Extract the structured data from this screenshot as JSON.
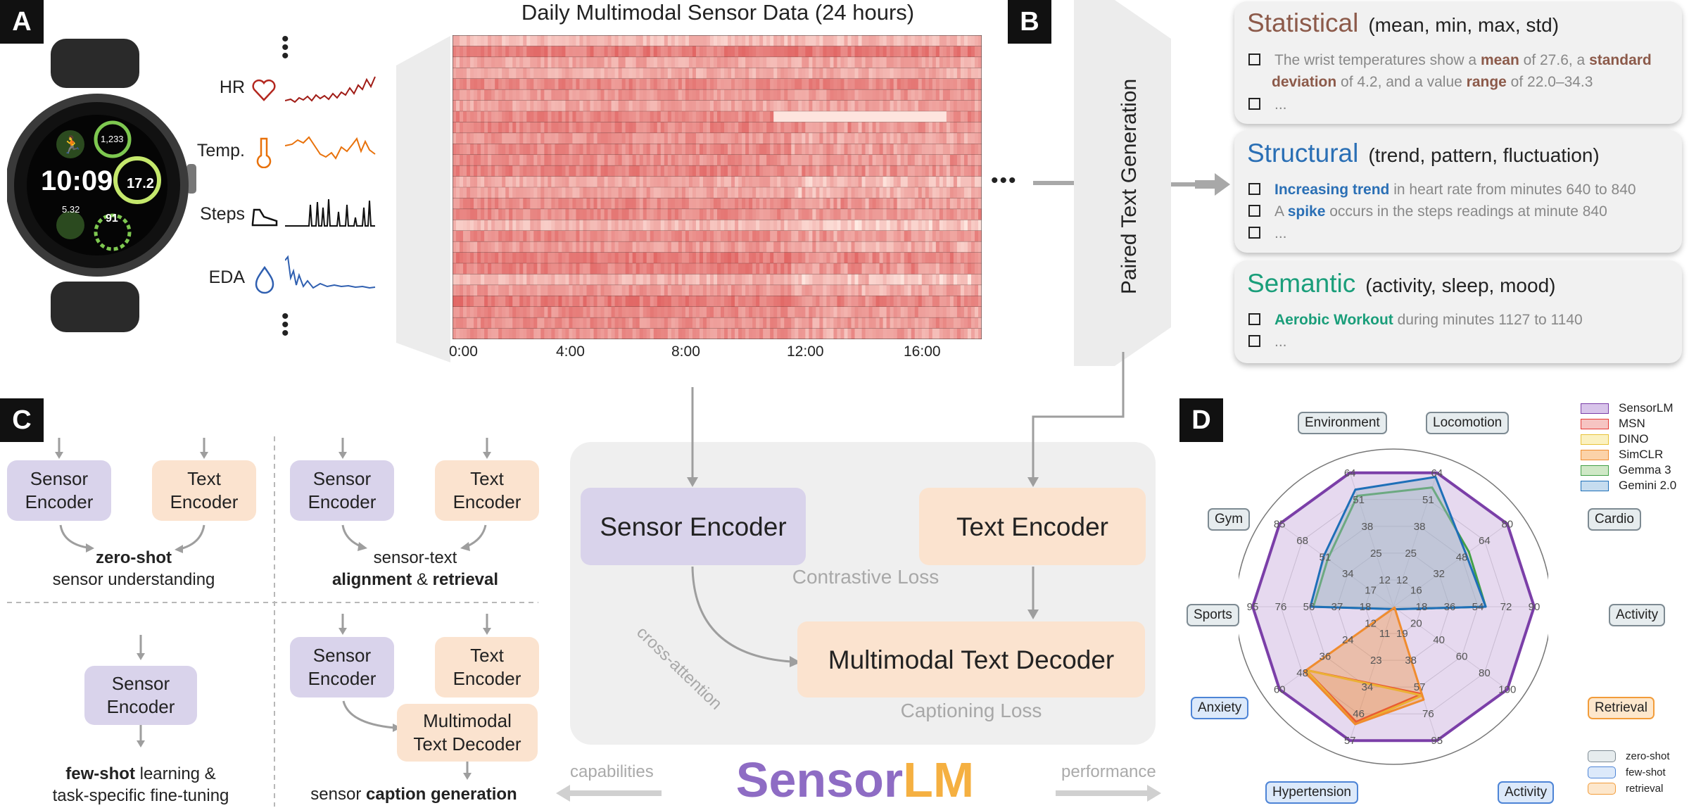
{
  "panels": {
    "a": "A",
    "b": "B",
    "c": "C",
    "d": "D"
  },
  "watch": {
    "time": "10:09",
    "steps": "1,233",
    "value_main": "17.2",
    "value_small": "5.32",
    "value_bottom": "91"
  },
  "signals": [
    {
      "label": "HR",
      "color": "#b3261e"
    },
    {
      "label": "Temp.",
      "color": "#e8710a"
    },
    {
      "label": "Steps",
      "color": "#111111"
    },
    {
      "label": "EDA",
      "color": "#2f5fb0"
    }
  ],
  "heatmap": {
    "title": "Daily Multimodal Sensor Data (24 hours)",
    "ticks": [
      "0:00",
      "4:00",
      "8:00",
      "12:00",
      "16:00"
    ]
  },
  "paired_text_generation": "Paired Text Generation",
  "boxes": {
    "statistical": {
      "title": "Statistical",
      "subtitle": "(mean, min, max, std)",
      "color": "#8c5a4a",
      "line1a": "The wrist temperatures show a ",
      "line1b": "mean",
      "line1c": " of 27.6, a ",
      "line1d": "standard",
      "line2a": "deviation",
      "line2b": " of 4.2, and a value ",
      "line2c": "range",
      "line2d": " of 22.0–34.3",
      "line3": "..."
    },
    "structural": {
      "title": "Structural",
      "subtitle": "(trend, pattern, fluctuation)",
      "color": "#2a6fb5",
      "line1a": "Increasing trend",
      "line1b": " in heart rate from minutes 640 to 840",
      "line2a": "A ",
      "line2b": "spike",
      "line2c": " occurs in the steps readings at minute 840",
      "line3": "..."
    },
    "semantic": {
      "title": "Semantic",
      "subtitle": "(activity, sleep, mood)",
      "color": "#1a9e7a",
      "line1a": "Aerobic Workout",
      "line1b": " during minutes 1127 to 1140",
      "line2": "..."
    }
  },
  "capabilities": {
    "sensor_encoder": "Sensor\nEncoder",
    "text_encoder": "Text\nEncoder",
    "multimodal_text_decoder": "Multimodal\nText Decoder",
    "zero_shot_bold": "zero-shot",
    "zero_shot_rest": "sensor understanding",
    "align_pre": "sensor-text",
    "align_bold1": "alignment",
    "align_mid": " & ",
    "align_bold2": "retrieval",
    "few_shot_bold": "few-shot",
    "few_shot_rest1": " learning &",
    "few_shot_rest2": "task-specific fine-tuning",
    "caption_pre": "sensor ",
    "caption_bold": "caption generation"
  },
  "architecture": {
    "sensor_encoder": "Sensor Encoder",
    "text_encoder": "Text Encoder",
    "decoder": "Multimodal Text Decoder",
    "contrastive_loss": "Contrastive Loss",
    "captioning_loss": "Captioning Loss",
    "cross_attention": "cross-attention",
    "logo_part1": "Sensor",
    "logo_part2": "LM",
    "logo_color1": "#8e6cc4",
    "logo_color2": "#f5b041",
    "capabilities_label": "capabilities",
    "performance_label": "performance"
  },
  "chart_data": {
    "type": "radar",
    "axes": [
      "Locomotion",
      "Cardio",
      "Activity",
      "Retrieval",
      "Activity",
      "Hypertension",
      "Anxiety",
      "Sports",
      "Gym",
      "Environment"
    ],
    "axis_groups": [
      "zero-shot",
      "zero-shot",
      "zero-shot",
      "retrieval",
      "few-shot",
      "few-shot",
      "few-shot",
      "zero-shot",
      "zero-shot",
      "zero-shot"
    ],
    "tick_labels": [
      [
        "64",
        "51",
        "38",
        "25",
        "12"
      ],
      [
        "80",
        "64",
        "48",
        "32",
        "16"
      ],
      [
        "90",
        "72",
        "54",
        "36",
        "18"
      ],
      [
        "100",
        "80",
        "60",
        "40",
        "20"
      ],
      [
        "95",
        "76",
        "57",
        "38",
        "19"
      ],
      [
        "57",
        "46",
        "34",
        "23",
        "11"
      ],
      [
        "60",
        "48",
        "36",
        "24",
        "12"
      ],
      [
        "95",
        "76",
        "56",
        "37",
        "18"
      ],
      [
        "85",
        "68",
        "51",
        "34",
        "17"
      ],
      [
        "64",
        "51",
        "38",
        "25",
        "12"
      ]
    ],
    "series": [
      {
        "name": "SensorLM",
        "color": "#7b3fa8",
        "fill": "rgba(200,170,220,0.45)",
        "values": [
          64,
          80,
          90,
          100,
          95,
          57,
          60,
          95,
          85,
          64
        ]
      },
      {
        "name": "MSN",
        "color": "#e53935",
        "fill": "rgba(229,57,53,0.08)",
        "values": [
          null,
          null,
          null,
          null,
          62,
          49,
          46,
          null,
          null,
          null
        ]
      },
      {
        "name": "DINO",
        "color": "#e8c33a",
        "fill": "rgba(232,195,58,0.08)",
        "values": [
          null,
          null,
          null,
          null,
          63,
          50,
          46,
          null,
          null,
          null
        ]
      },
      {
        "name": "SimCLR",
        "color": "#f08c2e",
        "fill": "rgba(240,140,46,0.35)",
        "values": [
          null,
          null,
          null,
          1,
          66,
          50,
          47,
          null,
          null,
          null
        ]
      },
      {
        "name": "Gemma 3",
        "color": "#43a047",
        "fill": "rgba(67,160,71,0.05)",
        "values": [
          57,
          53,
          59,
          3,
          null,
          null,
          null,
          54,
          49,
          53
        ]
      },
      {
        "name": "Gemini 2.0",
        "color": "#1e6fb8",
        "fill": "rgba(160,180,200,0.45)",
        "values": [
          62,
          51,
          59,
          3,
          null,
          null,
          null,
          56,
          52,
          56
        ]
      }
    ],
    "group_legend": [
      {
        "name": "zero-shot",
        "fill": "#e6ecee",
        "border": "#7d8a92"
      },
      {
        "name": "few-shot",
        "fill": "#dce9fa",
        "border": "#4d84d6"
      },
      {
        "name": "retrieval",
        "fill": "#fde7cc",
        "border": "#f29c3a"
      }
    ]
  }
}
